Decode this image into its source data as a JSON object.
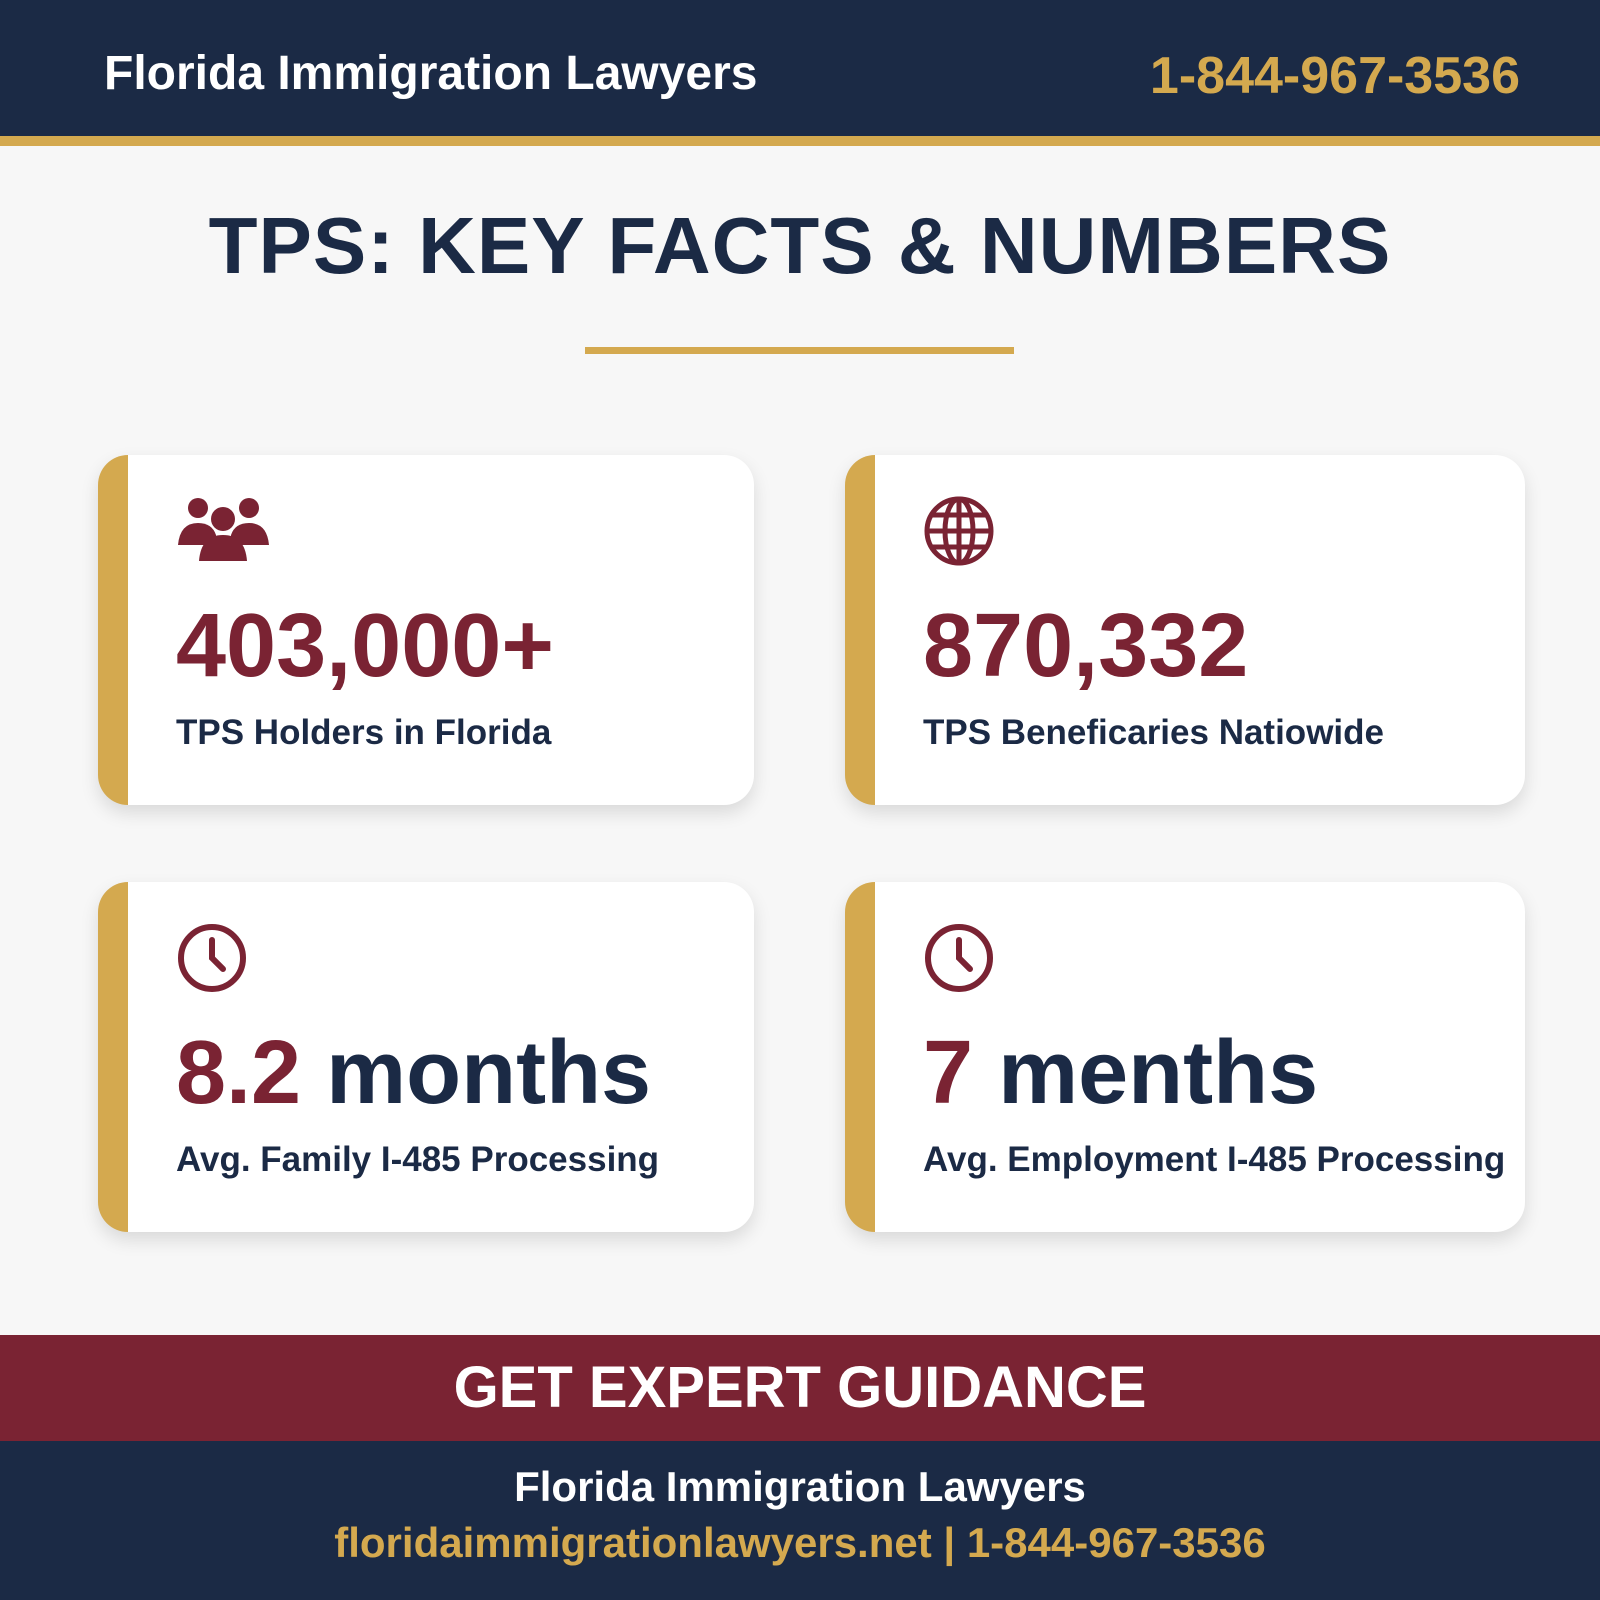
{
  "header": {
    "brand": "Florida Immigration Lawyers",
    "phone": "1-844-967-3536"
  },
  "title": "TPS: KEY FACTS & NUMBERS",
  "colors": {
    "navy": "#1b2a45",
    "gold": "#d4a94f",
    "maroon": "#7a2333"
  },
  "cards": [
    {
      "icon": "people-group-icon",
      "value": "403,000+",
      "unit": "",
      "label": "TPS Holders in Florida"
    },
    {
      "icon": "globe-icon",
      "value": "870,332",
      "unit": "",
      "label": "TPS Beneficaries Natiowide"
    },
    {
      "icon": "clock-icon",
      "value": "8.2",
      "unit": " months",
      "label": "Avg. Family I-485 Processing"
    },
    {
      "icon": "clock-icon",
      "value": "7",
      "unit": " menths",
      "label": "Avg. Employment I-485 Processing"
    }
  ],
  "cta": "GET EXPERT GUIDANCE",
  "footer": {
    "name": "Florida Immigration Lawyers",
    "website": "floridaimmigrationlawyers.net",
    "separator": " | ",
    "phone": "1-844-967-3536"
  }
}
